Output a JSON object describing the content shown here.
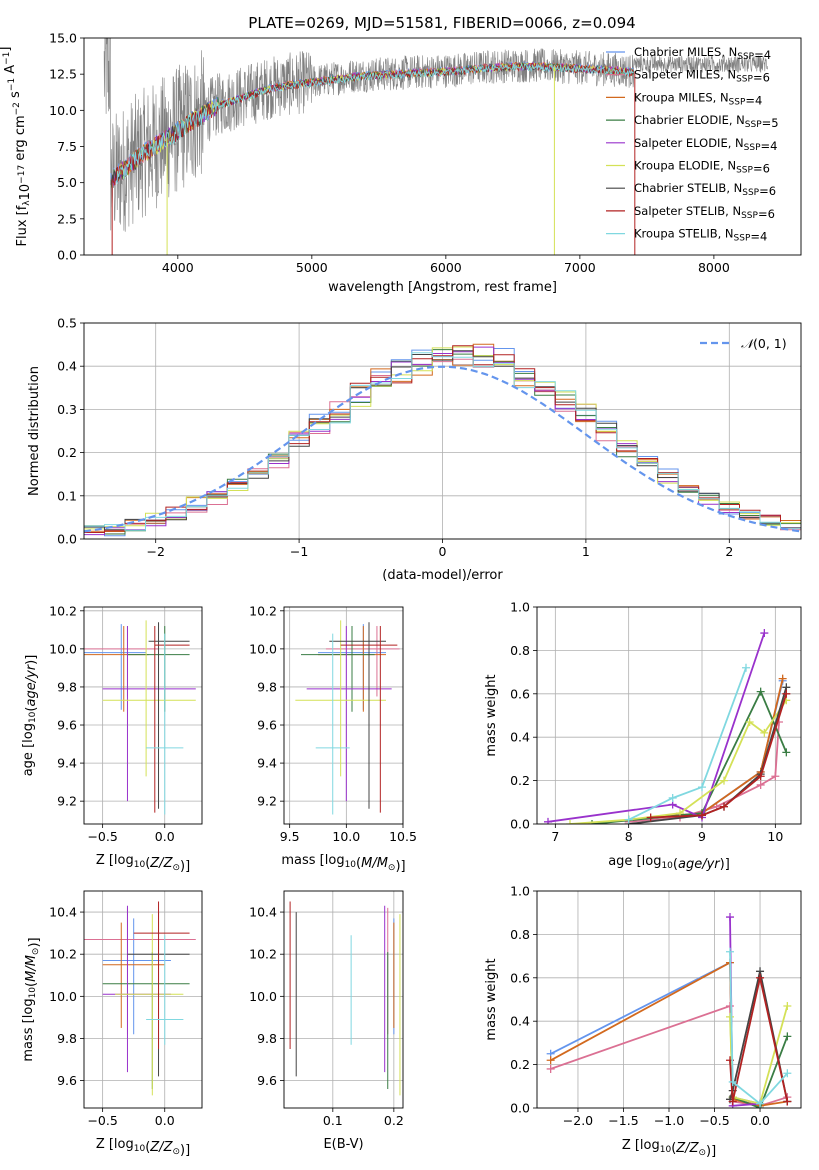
{
  "title": "PLATE=0269, MJD=51581, FIBERID=0066, z=0.094",
  "colors": {
    "Chabrier MILES": "#6495ed",
    "Salpeter MILES": "#db7093",
    "Kroupa MILES": "#d2691e",
    "Chabrier ELODIE": "#3a7d44",
    "Salpeter ELODIE": "#9932cc",
    "Kroupa ELODIE": "#d4e157",
    "Chabrier STELIB": "#444444",
    "Salpeter STELIB": "#b22222",
    "Kroupa STELIB": "#80d8e0",
    "data": "#808080",
    "normal": "#6495ed"
  },
  "chart_data": [
    {
      "id": "spectrum",
      "type": "line",
      "xlabel": "wavelength [Angstrom, rest frame]",
      "ylabel": "Flux [f_λ 10^-17 erg cm^-2 s^-1 A^-1]",
      "xlim": [
        3300,
        8650
      ],
      "ylim": [
        0,
        15
      ],
      "xticks": [
        4000,
        5000,
        6000,
        7000,
        8000
      ],
      "yticks": [
        0.0,
        2.5,
        5.0,
        7.5,
        10.0,
        12.5,
        15.0
      ],
      "grid": false,
      "legend_position": "right",
      "legend": [
        {
          "name": "Chabrier MILES",
          "nssp": "4"
        },
        {
          "name": "Salpeter MILES",
          "nssp": "6"
        },
        {
          "name": "Kroupa MILES",
          "nssp": "4"
        },
        {
          "name": "Chabrier ELODIE",
          "nssp": "5"
        },
        {
          "name": "Salpeter ELODIE",
          "nssp": "4"
        },
        {
          "name": "Kroupa ELODIE",
          "nssp": "6"
        },
        {
          "name": "Chabrier STELIB",
          "nssp": "6"
        },
        {
          "name": "Salpeter STELIB",
          "nssp": "6"
        },
        {
          "name": "Kroupa STELIB",
          "nssp": "4"
        }
      ],
      "continuum": {
        "x": [
          3500,
          3700,
          3900,
          4100,
          4300,
          4500,
          4700,
          4900,
          5100,
          5300,
          5500,
          5700,
          5900,
          6100,
          6300,
          6500,
          6700,
          6900,
          7100,
          7300,
          7400
        ],
        "y": [
          5.2,
          6.8,
          8.0,
          9.3,
          10.4,
          11.0,
          11.6,
          11.9,
          12.1,
          12.4,
          12.5,
          12.6,
          12.7,
          12.8,
          13.0,
          13.1,
          13.1,
          13.0,
          12.9,
          12.8,
          12.7
        ]
      },
      "data_range": [
        3450,
        8400
      ]
    },
    {
      "id": "residuals",
      "type": "line",
      "xlabel": "(data-model)/error",
      "ylabel": "Normed distribution",
      "xlim": [
        -2.5,
        2.5
      ],
      "ylim": [
        0,
        0.5
      ],
      "xticks": [
        -2,
        -1,
        0,
        1,
        2
      ],
      "yticks": [
        0.0,
        0.1,
        0.2,
        0.3,
        0.4,
        0.5
      ],
      "grid": true,
      "legend_position": "top-right",
      "normal_label": "N(0,1)",
      "bins": 35
    },
    {
      "id": "age-vs-Z",
      "type": "scatter",
      "xlabel": "Z [log10(Z/Z⊙)]",
      "ylabel": "age [log10(age/yr)]",
      "xlim": [
        -0.65,
        0.3
      ],
      "ylim": [
        9.08,
        10.22
      ],
      "xticks": [
        -0.5,
        0.0
      ],
      "yticks": [
        9.2,
        9.4,
        9.6,
        9.8,
        10.0,
        10.2
      ],
      "grid": true,
      "points": [
        {
          "model": "Chabrier MILES",
          "x": -0.35,
          "xerr": [
            0.35,
            0.2
          ],
          "y": 9.98,
          "yerr": [
            0.3,
            0.15
          ]
        },
        {
          "model": "Salpeter MILES",
          "x": -0.3,
          "xerr": [
            0.4,
            0.25
          ],
          "y": 10.0,
          "yerr": [
            0.25,
            0.12
          ]
        },
        {
          "model": "Kroupa MILES",
          "x": -0.33,
          "xerr": [
            0.33,
            0.2
          ],
          "y": 9.97,
          "yerr": [
            0.3,
            0.15
          ]
        },
        {
          "model": "Chabrier ELODIE",
          "x": 0.0,
          "xerr": [
            0.3,
            0.2
          ],
          "y": 9.97,
          "yerr": [
            0.3,
            0.15
          ]
        },
        {
          "model": "Salpeter ELODIE",
          "x": -0.3,
          "xerr": [
            0.2,
            0.55
          ],
          "y": 9.79,
          "yerr": [
            0.59,
            0.33
          ]
        },
        {
          "model": "Kroupa ELODIE",
          "x": -0.15,
          "xerr": [
            0.35,
            0.4
          ],
          "y": 9.73,
          "yerr": [
            0.4,
            0.42
          ]
        },
        {
          "model": "Chabrier STELIB",
          "x": -0.05,
          "xerr": [
            0.08,
            0.25
          ],
          "y": 10.04,
          "yerr": [
            0.88,
            0.1
          ]
        },
        {
          "model": "Salpeter STELIB",
          "x": -0.08,
          "xerr": [
            0.0,
            0.28
          ],
          "y": 10.02,
          "yerr": [
            0.88,
            0.1
          ]
        },
        {
          "model": "Kroupa STELIB",
          "x": 0.0,
          "xerr": [
            0.15,
            0.15
          ],
          "y": 9.48,
          "yerr": [
            0.35,
            0.6
          ]
        }
      ]
    },
    {
      "id": "age-vs-mass",
      "type": "scatter",
      "xlabel": "mass [log10(M/M⊙)]",
      "xlim": [
        9.45,
        10.5
      ],
      "ylim": [
        9.08,
        10.22
      ],
      "xticks": [
        9.5,
        10.0,
        10.5
      ],
      "yticks": [
        9.2,
        9.4,
        9.6,
        9.8,
        10.0,
        10.2
      ],
      "grid": true,
      "points": [
        {
          "model": "Chabrier MILES",
          "x": 10.15,
          "xerr": [
            0.4,
            0.2
          ],
          "y": 9.98,
          "yerr": [
            0.3,
            0.15
          ]
        },
        {
          "model": "Salpeter MILES",
          "x": 10.27,
          "xerr": [
            0.45,
            0.2
          ],
          "y": 10.0,
          "yerr": [
            0.25,
            0.12
          ]
        },
        {
          "model": "Kroupa MILES",
          "x": 10.15,
          "xerr": [
            0.4,
            0.2
          ],
          "y": 9.97,
          "yerr": [
            0.3,
            0.15
          ]
        },
        {
          "model": "Chabrier ELODIE",
          "x": 10.05,
          "xerr": [
            0.45,
            0.2
          ],
          "y": 9.97,
          "yerr": [
            0.3,
            0.15
          ]
        },
        {
          "model": "Salpeter ELODIE",
          "x": 10.0,
          "xerr": [
            0.35,
            0.4
          ],
          "y": 9.79,
          "yerr": [
            0.59,
            0.33
          ]
        },
        {
          "model": "Kroupa ELODIE",
          "x": 9.95,
          "xerr": [
            0.4,
            0.4
          ],
          "y": 9.73,
          "yerr": [
            0.4,
            0.42
          ]
        },
        {
          "model": "Chabrier STELIB",
          "x": 10.2,
          "xerr": [
            0.35,
            0.15
          ],
          "y": 10.04,
          "yerr": [
            0.88,
            0.1
          ]
        },
        {
          "model": "Salpeter STELIB",
          "x": 10.3,
          "xerr": [
            0.35,
            0.15
          ],
          "y": 10.02,
          "yerr": [
            0.88,
            0.1
          ]
        },
        {
          "model": "Kroupa STELIB",
          "x": 9.88,
          "xerr": [
            0.15,
            0.15
          ],
          "y": 9.48,
          "yerr": [
            0.35,
            0.6
          ]
        }
      ]
    },
    {
      "id": "weight-vs-age",
      "type": "line",
      "xlabel": "age [log10(age/yr)]",
      "ylabel": "mass weight",
      "xlim": [
        6.75,
        10.35
      ],
      "ylim": [
        0,
        1.0
      ],
      "xticks": [
        7,
        8,
        9,
        10
      ],
      "yticks": [
        0.0,
        0.2,
        0.4,
        0.6,
        0.8,
        1.0
      ],
      "grid": true,
      "series": [
        {
          "model": "Chabrier MILES",
          "x": [
            8.0,
            9.0,
            9.8,
            10.1
          ],
          "y": [
            0.02,
            0.05,
            0.24,
            0.66
          ]
        },
        {
          "model": "Salpeter MILES",
          "x": [
            8.0,
            8.7,
            9.2,
            9.8,
            10.0,
            10.05
          ],
          "y": [
            0.01,
            0.03,
            0.08,
            0.18,
            0.22,
            0.47
          ]
        },
        {
          "model": "Kroupa MILES",
          "x": [
            8.0,
            9.0,
            9.8,
            10.1
          ],
          "y": [
            0.02,
            0.05,
            0.24,
            0.67
          ]
        },
        {
          "model": "Chabrier ELODIE",
          "x": [
            7.5,
            9.0,
            9.8,
            10.15
          ],
          "y": [
            0.0,
            0.05,
            0.61,
            0.33
          ]
        },
        {
          "model": "Salpeter ELODIE",
          "x": [
            6.9,
            8.6,
            9.0,
            9.85
          ],
          "y": [
            0.01,
            0.09,
            0.03,
            0.88
          ]
        },
        {
          "model": "Kroupa ELODIE",
          "x": [
            7.2,
            8.0,
            8.7,
            9.3,
            9.65,
            9.85,
            10.15
          ],
          "y": [
            0.0,
            0.02,
            0.05,
            0.2,
            0.47,
            0.42,
            0.57
          ]
        },
        {
          "model": "Chabrier STELIB",
          "x": [
            8.0,
            9.0,
            9.3,
            9.8,
            10.15
          ],
          "y": [
            0.0,
            0.04,
            0.08,
            0.23,
            0.63
          ]
        },
        {
          "model": "Salpeter STELIB",
          "x": [
            8.3,
            9.0,
            9.3,
            9.8,
            10.15
          ],
          "y": [
            0.03,
            0.04,
            0.08,
            0.22,
            0.6
          ]
        },
        {
          "model": "Kroupa STELIB",
          "x": [
            8.0,
            8.6,
            9.0,
            9.6
          ],
          "y": [
            0.02,
            0.12,
            0.17,
            0.72
          ]
        }
      ]
    },
    {
      "id": "mass-vs-Z",
      "type": "scatter",
      "xlabel": "Z [log10(Z/Z⊙)]",
      "ylabel": "mass [log10(M/M⊙)]",
      "xlim": [
        -0.65,
        0.3
      ],
      "ylim": [
        9.47,
        10.5
      ],
      "xticks": [
        -0.5,
        0.0
      ],
      "yticks": [
        9.6,
        9.8,
        10.0,
        10.2,
        10.4
      ],
      "grid": true,
      "points": [
        {
          "model": "Chabrier MILES",
          "x": -0.25,
          "xerr": [
            0.25,
            0.3
          ],
          "y": 10.17,
          "yerr": [
            0.35,
            0.2
          ]
        },
        {
          "model": "Salpeter MILES",
          "x": -0.3,
          "xerr": [
            0.35,
            0.55
          ],
          "y": 10.27,
          "yerr": [
            0.45,
            0.15
          ]
        },
        {
          "model": "Kroupa MILES",
          "x": -0.35,
          "xerr": [
            0.15,
            0.35
          ],
          "y": 10.15,
          "yerr": [
            0.3,
            0.2
          ]
        },
        {
          "model": "Chabrier ELODIE",
          "x": -0.1,
          "xerr": [
            0.4,
            0.3
          ],
          "y": 10.06,
          "yerr": [
            0.5,
            0.15
          ]
        },
        {
          "model": "Salpeter ELODIE",
          "x": -0.3,
          "xerr": [
            0.2,
            0.35
          ],
          "y": 10.01,
          "yerr": [
            0.37,
            0.42
          ]
        },
        {
          "model": "Kroupa ELODIE",
          "x": -0.1,
          "xerr": [
            0.3,
            0.25
          ],
          "y": 10.01,
          "yerr": [
            0.48,
            0.38
          ]
        },
        {
          "model": "Chabrier STELIB",
          "x": -0.05,
          "xerr": [
            0.25,
            0.25
          ],
          "y": 10.2,
          "yerr": [
            0.58,
            0.2
          ]
        },
        {
          "model": "Salpeter STELIB",
          "x": -0.05,
          "xerr": [
            0.2,
            0.25
          ],
          "y": 10.3,
          "yerr": [
            0.55,
            0.15
          ]
        },
        {
          "model": "Kroupa STELIB",
          "x": 0.0,
          "xerr": [
            0.15,
            0.15
          ],
          "y": 9.89,
          "yerr": [
            0.12,
            0.4
          ]
        }
      ]
    },
    {
      "id": "mass-vs-EBV",
      "type": "scatter",
      "xlabel": "E(B-V)",
      "xlim": [
        0.02,
        0.215
      ],
      "ylim": [
        9.47,
        10.5
      ],
      "xticks": [
        0.1,
        0.2
      ],
      "yticks": [
        9.6,
        9.8,
        10.0,
        10.2,
        10.4
      ],
      "grid": true,
      "points": [
        {
          "model": "Chabrier MILES",
          "x": 0.2,
          "y": 10.17,
          "yerr": [
            0.35,
            0.2
          ]
        },
        {
          "model": "Salpeter MILES",
          "x": 0.19,
          "y": 10.27,
          "yerr": [
            0.45,
            0.15
          ]
        },
        {
          "model": "Kroupa MILES",
          "x": 0.2,
          "y": 10.15,
          "yerr": [
            0.3,
            0.2
          ]
        },
        {
          "model": "Chabrier ELODIE",
          "x": 0.19,
          "y": 10.06,
          "yerr": [
            0.5,
            0.15
          ]
        },
        {
          "model": "Salpeter ELODIE",
          "x": 0.185,
          "y": 10.01,
          "yerr": [
            0.37,
            0.42
          ]
        },
        {
          "model": "Kroupa ELODIE",
          "x": 0.21,
          "y": 10.01,
          "yerr": [
            0.48,
            0.38
          ]
        },
        {
          "model": "Chabrier STELIB",
          "x": 0.04,
          "y": 10.2,
          "yerr": [
            0.58,
            0.2
          ]
        },
        {
          "model": "Salpeter STELIB",
          "x": 0.03,
          "y": 10.3,
          "yerr": [
            0.55,
            0.15
          ]
        },
        {
          "model": "Kroupa STELIB",
          "x": 0.13,
          "y": 9.89,
          "yerr": [
            0.12,
            0.4
          ]
        }
      ]
    },
    {
      "id": "weight-vs-Z",
      "type": "line",
      "xlabel": "Z [log10(Z/Z⊙)]",
      "ylabel": "mass weight",
      "xlim": [
        -2.45,
        0.45
      ],
      "ylim": [
        0,
        1.0
      ],
      "xticks": [
        -2.0,
        -1.5,
        -1.0,
        -0.5,
        0.0
      ],
      "yticks": [
        0.0,
        0.2,
        0.4,
        0.6,
        0.8,
        1.0
      ],
      "grid": true,
      "series": [
        {
          "model": "Chabrier MILES",
          "x": [
            -2.3,
            -0.33,
            -0.3,
            0.0
          ],
          "y": [
            0.25,
            0.67,
            0.05,
            0.02
          ]
        },
        {
          "model": "Salpeter MILES",
          "x": [
            -2.3,
            -0.33,
            -0.3,
            0.0,
            0.3
          ],
          "y": [
            0.18,
            0.47,
            0.03,
            0.01,
            0.05
          ]
        },
        {
          "model": "Kroupa MILES",
          "x": [
            -2.3,
            -0.33,
            -0.3,
            0.0,
            0.3
          ],
          "y": [
            0.22,
            0.67,
            0.04,
            0.01,
            0.03
          ]
        },
        {
          "model": "Chabrier ELODIE",
          "x": [
            -0.3,
            0.0,
            0.3
          ],
          "y": [
            0.05,
            0.0,
            0.33
          ]
        },
        {
          "model": "Salpeter ELODIE",
          "x": [
            -0.33,
            -0.3,
            0.0
          ],
          "y": [
            0.88,
            0.01,
            0.02
          ]
        },
        {
          "model": "Kroupa ELODIE",
          "x": [
            -0.33,
            -0.3,
            0.0,
            0.3
          ],
          "y": [
            0.42,
            0.05,
            0.02,
            0.47
          ]
        },
        {
          "model": "Chabrier STELIB",
          "x": [
            -0.33,
            -0.3,
            0.0,
            0.3
          ],
          "y": [
            0.04,
            0.08,
            0.63,
            0.03
          ]
        },
        {
          "model": "Salpeter STELIB",
          "x": [
            -0.33,
            -0.3,
            0.0,
            0.3
          ],
          "y": [
            0.22,
            0.03,
            0.6,
            0.03
          ]
        },
        {
          "model": "Kroupa STELIB",
          "x": [
            -0.33,
            -0.3,
            0.0,
            0.3
          ],
          "y": [
            0.72,
            0.12,
            0.02,
            0.16
          ]
        }
      ]
    }
  ]
}
